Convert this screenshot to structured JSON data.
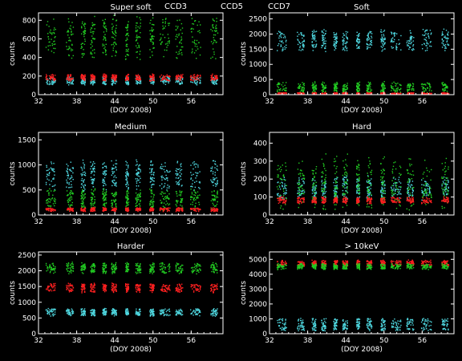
{
  "legend": {
    "ccd3": {
      "label": "CCD3",
      "color": "#4fd8e0"
    },
    "ccd5": {
      "label": "CCD5",
      "color": "#22cc22"
    },
    "ccd7": {
      "label": "CCD7",
      "color": "#ff2020"
    }
  },
  "background": "#000000",
  "axis_color": "#ffffff",
  "chart_data": [
    {
      "type": "scatter",
      "title": "Super soft",
      "xlabel": "(DOY 2008)",
      "ylabel": "counts",
      "xlim": [
        32,
        61
      ],
      "ylim": [
        0,
        880
      ],
      "xticks": [
        32,
        38,
        44,
        50,
        56
      ],
      "yticks": [
        0,
        200,
        400,
        600,
        800
      ],
      "series": [
        {
          "name": "CCD5",
          "color": "#22cc22",
          "band_low": 420,
          "band_high": 820,
          "spread": 90
        },
        {
          "name": "CCD3",
          "color": "#4fd8e0",
          "band_low": 120,
          "band_high": 190,
          "spread": 25
        },
        {
          "name": "CCD7",
          "color": "#ff2020",
          "band_low": 160,
          "band_high": 220,
          "spread": 20
        }
      ]
    },
    {
      "type": "scatter",
      "title": "Soft",
      "xlabel": "(DOY 2008)",
      "ylabel": "counts",
      "xlim": [
        32,
        61
      ],
      "ylim": [
        0,
        2700
      ],
      "xticks": [
        32,
        38,
        44,
        50,
        56
      ],
      "yticks": [
        0,
        500,
        1000,
        1500,
        2000,
        2500
      ],
      "series": [
        {
          "name": "CCD3",
          "color": "#4fd8e0",
          "band_low": 1500,
          "band_high": 2100,
          "spread": 200
        },
        {
          "name": "CCD5",
          "color": "#22cc22",
          "band_low": 100,
          "band_high": 400,
          "spread": 120
        },
        {
          "name": "CCD7",
          "color": "#ff2020",
          "band_low": 20,
          "band_high": 80,
          "spread": 20
        }
      ]
    },
    {
      "type": "scatter",
      "title": "Medium",
      "xlabel": "(DOY 2008)",
      "ylabel": "counts",
      "xlim": [
        32,
        61
      ],
      "ylim": [
        0,
        1650
      ],
      "xticks": [
        32,
        38,
        44,
        50,
        56
      ],
      "yticks": [
        0,
        500,
        1000,
        1500
      ],
      "series": [
        {
          "name": "CCD3",
          "color": "#4fd8e0",
          "band_low": 550,
          "band_high": 1050,
          "spread": 180
        },
        {
          "name": "CCD5",
          "color": "#22cc22",
          "band_low": 150,
          "band_high": 500,
          "spread": 120
        },
        {
          "name": "CCD7",
          "color": "#ff2020",
          "band_low": 90,
          "band_high": 150,
          "spread": 25
        }
      ]
    },
    {
      "type": "scatter",
      "title": "Hard",
      "xlabel": "(DOY 2008)",
      "ylabel": "counts",
      "xlim": [
        32,
        61
      ],
      "ylim": [
        0,
        460
      ],
      "xticks": [
        32,
        38,
        44,
        50,
        56
      ],
      "yticks": [
        0,
        100,
        200,
        300,
        400
      ],
      "series": [
        {
          "name": "CCD3",
          "color": "#4fd8e0",
          "band_low": 100,
          "band_high": 200,
          "spread": 50
        },
        {
          "name": "CCD5",
          "color": "#22cc22",
          "band_low": 60,
          "band_high": 300,
          "spread": 90
        },
        {
          "name": "CCD7",
          "color": "#ff2020",
          "band_low": 70,
          "band_high": 100,
          "spread": 10
        }
      ]
    },
    {
      "type": "scatter",
      "title": "Harder",
      "xlabel": "(DOY 2008)",
      "ylabel": "counts",
      "xlim": [
        32,
        61
      ],
      "ylim": [
        0,
        2600
      ],
      "xticks": [
        32,
        38,
        44,
        50,
        56
      ],
      "yticks": [
        0,
        500,
        1000,
        1500,
        2000,
        2500
      ],
      "series": [
        {
          "name": "CCD5",
          "color": "#22cc22",
          "band_low": 1950,
          "band_high": 2250,
          "spread": 80
        },
        {
          "name": "CCD7",
          "color": "#ff2020",
          "band_low": 1350,
          "band_high": 1600,
          "spread": 70
        },
        {
          "name": "CCD3",
          "color": "#4fd8e0",
          "band_low": 600,
          "band_high": 800,
          "spread": 60
        }
      ]
    },
    {
      "type": "scatter",
      "title": "> 10keV",
      "xlabel": "(DOY 2008)",
      "ylabel": "counts",
      "xlim": [
        32,
        61
      ],
      "ylim": [
        0,
        5500
      ],
      "xticks": [
        32,
        38,
        44,
        50,
        56
      ],
      "yticks": [
        0,
        1000,
        2000,
        3000,
        4000,
        5000
      ],
      "series": [
        {
          "name": "CCD7",
          "color": "#ff2020",
          "band_low": 4600,
          "band_high": 4950,
          "spread": 100
        },
        {
          "name": "CCD5",
          "color": "#22cc22",
          "band_low": 4400,
          "band_high": 4700,
          "spread": 150
        },
        {
          "name": "CCD3",
          "color": "#4fd8e0",
          "band_low": 250,
          "band_high": 1050,
          "spread": 60
        }
      ]
    }
  ]
}
